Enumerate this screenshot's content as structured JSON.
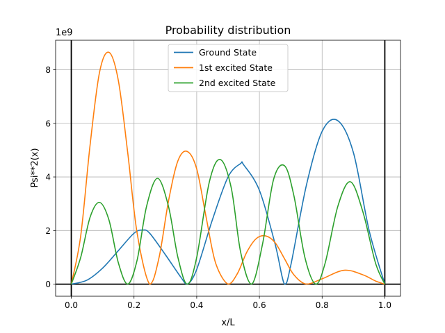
{
  "chart_data": {
    "type": "line",
    "title": "Probability distribution",
    "xlabel": "x/L",
    "ylabel": "Psi**2(x)",
    "y_offset_text": "1e9",
    "xlim": [
      -0.05,
      1.05
    ],
    "ylim": [
      -0.45,
      9.1
    ],
    "x_ticks": [
      0.0,
      0.2,
      0.4,
      0.6,
      0.8,
      1.0
    ],
    "x_tick_labels": [
      "0.0",
      "0.2",
      "0.4",
      "0.6",
      "0.8",
      "1.0"
    ],
    "y_ticks": [
      0,
      2,
      4,
      6,
      8
    ],
    "y_tick_labels": [
      "0",
      "2",
      "4",
      "6",
      "8"
    ],
    "grid": true,
    "legend_position": "top-center",
    "reference_lines": {
      "vertical_x": [
        0.0,
        1.0
      ],
      "horizontal_y": [
        0.0
      ]
    },
    "series": [
      {
        "name": "Ground State",
        "color": "#1f77b4",
        "x": [
          0.0,
          0.05,
          0.1,
          0.15,
          0.2,
          0.228,
          0.25,
          0.3,
          0.35,
          0.37,
          0.4,
          0.45,
          0.5,
          0.54,
          0.55,
          0.6,
          0.65,
          0.68,
          0.7,
          0.75,
          0.8,
          0.85,
          0.9,
          0.95,
          1.0
        ],
        "y": [
          0.0,
          0.15,
          0.6,
          1.25,
          1.9,
          2.02,
          1.9,
          1.1,
          0.25,
          0.0,
          0.55,
          2.4,
          4.0,
          4.5,
          4.45,
          3.5,
          1.5,
          0.0,
          0.7,
          3.7,
          5.7,
          6.1,
          4.9,
          2.0,
          0.0
        ]
      },
      {
        "name": "1st excited State",
        "color": "#ff7f0e",
        "x": [
          0.0,
          0.03,
          0.06,
          0.09,
          0.12,
          0.15,
          0.18,
          0.21,
          0.25,
          0.28,
          0.31,
          0.34,
          0.37,
          0.4,
          0.43,
          0.46,
          0.5,
          0.53,
          0.56,
          0.59,
          0.62,
          0.65,
          0.68,
          0.71,
          0.75,
          0.8,
          0.87,
          0.93,
          0.97,
          1.0
        ],
        "y": [
          0.0,
          1.8,
          5.2,
          7.9,
          8.65,
          7.6,
          4.9,
          1.9,
          0.0,
          1.0,
          3.1,
          4.6,
          4.95,
          4.3,
          2.5,
          0.8,
          0.0,
          0.4,
          1.2,
          1.7,
          1.8,
          1.55,
          0.95,
          0.35,
          0.0,
          0.2,
          0.52,
          0.35,
          0.12,
          0.0
        ]
      },
      {
        "name": "2nd excited State",
        "color": "#2ca02c",
        "x": [
          0.0,
          0.03,
          0.06,
          0.09,
          0.12,
          0.15,
          0.18,
          0.21,
          0.24,
          0.275,
          0.31,
          0.34,
          0.37,
          0.4,
          0.44,
          0.475,
          0.51,
          0.54,
          0.575,
          0.61,
          0.645,
          0.68,
          0.71,
          0.745,
          0.78,
          0.81,
          0.85,
          0.89,
          0.93,
          0.97,
          1.0
        ],
        "y": [
          0.0,
          1.0,
          2.5,
          3.05,
          2.4,
          0.8,
          0.0,
          0.9,
          2.9,
          3.95,
          2.9,
          1.0,
          0.0,
          1.0,
          3.8,
          4.65,
          3.6,
          1.2,
          0.0,
          1.5,
          3.9,
          4.42,
          3.3,
          1.0,
          0.0,
          0.8,
          2.9,
          3.82,
          2.7,
          0.8,
          0.0
        ]
      }
    ]
  }
}
